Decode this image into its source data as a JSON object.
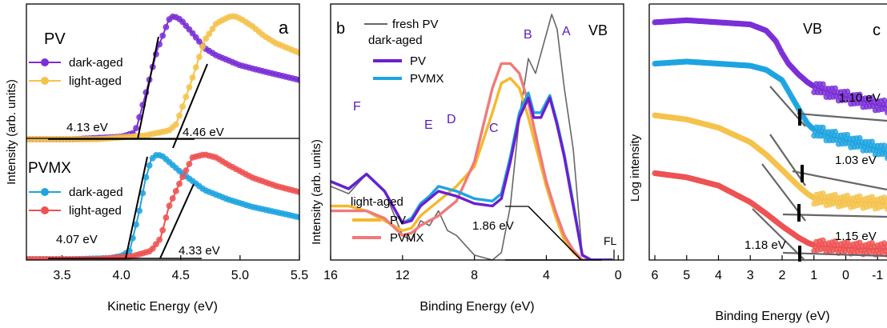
{
  "chart_data": [
    {
      "panel_label": "a",
      "type": "line",
      "xlabel": "Kinetic Energy (eV)",
      "ylabel": "Intensity (arb. units)",
      "xlim": [
        3.2,
        5.5
      ],
      "xticks": [
        "3.5",
        "4.0",
        "4.5",
        "5.0",
        "5.5"
      ],
      "groups": [
        {
          "title": "PV",
          "series": [
            {
              "name": "dark-aged",
              "color": "#7b2fd6",
              "x": [
                3.2,
                3.6,
                4.0,
                4.1,
                4.13,
                4.2,
                4.3,
                4.4,
                4.44,
                4.5,
                4.6,
                4.7,
                4.8,
                5.0,
                5.2,
                5.5
              ],
              "y": [
                0,
                0,
                0.02,
                0.05,
                0.1,
                0.35,
                0.72,
                0.97,
                1.0,
                0.97,
                0.86,
                0.74,
                0.68,
                0.6,
                0.55,
                0.48
              ]
            },
            {
              "name": "light-aged",
              "color": "#f5c24c",
              "x": [
                3.2,
                3.8,
                4.2,
                4.4,
                4.46,
                4.5,
                4.6,
                4.7,
                4.8,
                4.9,
                4.95,
                5.0,
                5.1,
                5.2,
                5.3,
                5.5
              ],
              "y": [
                0,
                0,
                0.03,
                0.07,
                0.12,
                0.22,
                0.5,
                0.8,
                0.94,
                0.99,
                1.0,
                0.98,
                0.92,
                0.84,
                0.78,
                0.7
              ]
            }
          ],
          "annotations": [
            "4.13 eV",
            "4.46 eV"
          ]
        },
        {
          "title": "PVMX",
          "series": [
            {
              "name": "dark-aged",
              "color": "#1ea4e0",
              "x": [
                3.2,
                3.6,
                3.9,
                4.0,
                4.07,
                4.15,
                4.2,
                4.25,
                4.3,
                4.35,
                4.5,
                4.7,
                4.9,
                5.1,
                5.3,
                5.5
              ],
              "y": [
                0,
                0,
                0.01,
                0.03,
                0.08,
                0.45,
                0.75,
                0.95,
                1.0,
                0.98,
                0.83,
                0.66,
                0.57,
                0.5,
                0.45,
                0.4
              ]
            },
            {
              "name": "light-aged",
              "color": "#ee5252",
              "x": [
                3.2,
                3.8,
                4.1,
                4.25,
                4.33,
                4.4,
                4.5,
                4.6,
                4.7,
                4.8,
                4.9,
                5.1,
                5.3,
                5.5
              ],
              "y": [
                0,
                0,
                0.03,
                0.08,
                0.2,
                0.5,
                0.75,
                0.97,
                1.0,
                0.97,
                0.9,
                0.78,
                0.7,
                0.64
              ]
            }
          ],
          "annotations": [
            "4.07 eV",
            "4.33 eV"
          ]
        }
      ]
    },
    {
      "panel_label": "b",
      "type": "line",
      "title": "VB",
      "xlabel": "Binding Energy (eV)",
      "ylabel": "Intensity (arb. units)",
      "xlim": [
        16,
        -0.3
      ],
      "xticks": [
        "16",
        "12",
        "8",
        "4",
        "0"
      ],
      "series": [
        {
          "name": "fresh PV",
          "color": "#666666",
          "x": [
            16,
            15,
            14,
            13,
            12,
            11.5,
            11,
            10.5,
            10,
            9.5,
            9,
            8.5,
            8,
            7,
            6.5,
            6,
            5.5,
            5,
            4.6,
            4.3,
            3.7,
            3.4,
            3,
            2.5,
            2.0,
            1.5,
            1.0,
            0.3
          ],
          "y": [
            0.3,
            0.27,
            0.35,
            0.28,
            0.1,
            0.08,
            0.16,
            0.14,
            0.2,
            0.12,
            0.1,
            0.06,
            0.02,
            0,
            0.03,
            0.22,
            0.58,
            0.82,
            0.76,
            0.84,
            1.0,
            0.94,
            0.7,
            0.45,
            0.02,
            0,
            0,
            0
          ]
        },
        {
          "name": "PV",
          "group": "dark-aged",
          "color": "#6a1fd0",
          "x": [
            16,
            15,
            14,
            13,
            12,
            11.5,
            11,
            10.5,
            10,
            9.5,
            9,
            8,
            7,
            6.5,
            6,
            5.5,
            5,
            4.7,
            4.3,
            3.8,
            3.4,
            3,
            2.5,
            2.0,
            1.5,
            1.0,
            0.3
          ],
          "y": [
            0.32,
            0.29,
            0.35,
            0.28,
            0.15,
            0.16,
            0.22,
            0.25,
            0.28,
            0.27,
            0.26,
            0.23,
            0.22,
            0.25,
            0.4,
            0.58,
            0.66,
            0.58,
            0.58,
            0.66,
            0.55,
            0.42,
            0.22,
            0.02,
            0,
            0,
            0
          ]
        },
        {
          "name": "PVMX",
          "group": "dark-aged",
          "color": "#1ea4e0",
          "x": [
            16,
            15,
            14,
            13,
            12,
            11.5,
            11,
            10.5,
            10,
            9.5,
            9,
            8,
            7,
            6.5,
            6,
            5.5,
            5,
            4.7,
            4.3,
            3.8,
            3.4,
            3,
            2.5,
            2.0,
            1.5,
            1.0,
            0.3
          ],
          "y": [
            0.32,
            0.29,
            0.35,
            0.28,
            0.15,
            0.17,
            0.23,
            0.26,
            0.3,
            0.29,
            0.28,
            0.25,
            0.24,
            0.27,
            0.42,
            0.6,
            0.68,
            0.6,
            0.6,
            0.67,
            0.56,
            0.43,
            0.23,
            0.02,
            0,
            0,
            0
          ]
        },
        {
          "name": "PV",
          "group": "light-aged",
          "color": "#f5b82e",
          "x": [
            16,
            15,
            14,
            13,
            12,
            11.5,
            11,
            10,
            9,
            8,
            7,
            6.5,
            6,
            5.5,
            5,
            4.5,
            4,
            3.5,
            3,
            2.5,
            2.0,
            1.5,
            1.0,
            0.3
          ],
          "y": [
            0.22,
            0.22,
            0.2,
            0.16,
            0.12,
            0.13,
            0.18,
            0.24,
            0.3,
            0.38,
            0.6,
            0.72,
            0.74,
            0.7,
            0.58,
            0.44,
            0.3,
            0.18,
            0.08,
            0.03,
            0,
            0,
            0,
            0
          ]
        },
        {
          "name": "PVMX",
          "group": "light-aged",
          "color": "#f07a7a",
          "x": [
            16,
            15,
            14,
            13,
            12,
            11.5,
            11,
            10,
            9,
            8,
            7,
            6.5,
            6,
            5.5,
            5,
            4.5,
            4,
            3.5,
            3,
            2.5,
            2.0,
            1.5,
            1.0,
            0.3
          ],
          "y": [
            0.2,
            0.2,
            0.2,
            0.17,
            0.1,
            0.11,
            0.14,
            0.18,
            0.24,
            0.4,
            0.7,
            0.8,
            0.8,
            0.76,
            0.64,
            0.48,
            0.32,
            0.2,
            0.1,
            0.04,
            0,
            0,
            0,
            0
          ]
        }
      ],
      "peak_labels": [
        "A",
        "B",
        "C",
        "D",
        "E",
        "F"
      ],
      "legend_groups": [
        "dark-aged",
        "light-aged"
      ],
      "annotations": [
        "1.86 eV",
        "FL"
      ]
    },
    {
      "panel_label": "c",
      "type": "line",
      "title": "VB",
      "xlabel": "Binding Energy (eV)",
      "ylabel": "Log intensity",
      "xlim": [
        6,
        -1.8
      ],
      "xticks": [
        "6",
        "5",
        "4",
        "3",
        "2",
        "1",
        "0",
        "-1"
      ],
      "series": [
        {
          "color": "#7b2fd6",
          "x": [
            6,
            5,
            4,
            3,
            2.5,
            2.2,
            2.0,
            1.8,
            1.5,
            1.2,
            1.0,
            0.5,
            0,
            -0.5,
            -1,
            -1.5,
            -1.8
          ],
          "y": [
            9.35,
            9.4,
            9.35,
            9.3,
            9.15,
            8.9,
            8.6,
            8.35,
            8.1,
            7.9,
            7.8,
            7.65,
            7.55,
            7.45,
            7.35,
            7.28,
            7.22
          ]
        },
        {
          "color": "#1ea4e0",
          "x": [
            6,
            5,
            4,
            3,
            2.5,
            2.0,
            1.7,
            1.4,
            1.2,
            1.0,
            0.5,
            0,
            -0.5,
            -1,
            -1.5,
            -1.8
          ],
          "y": [
            8.35,
            8.4,
            8.35,
            8.3,
            8.2,
            7.95,
            7.55,
            7.15,
            6.9,
            6.75,
            6.6,
            6.5,
            6.4,
            6.28,
            6.16,
            6.08
          ]
        },
        {
          "color": "#f5c24c",
          "x": [
            6,
            5,
            4,
            3,
            2.5,
            2.0,
            1.5,
            1.2,
            1.0,
            0.5,
            0,
            -0.5,
            -1,
            -1.5,
            -1.8
          ],
          "y": [
            7.1,
            7.0,
            6.8,
            6.45,
            6.15,
            5.78,
            5.4,
            5.2,
            5.1,
            5.05,
            5.02,
            5.0,
            4.98,
            4.96,
            4.95
          ]
        },
        {
          "color": "#ee5252",
          "x": [
            6,
            5,
            4,
            3,
            2.5,
            2.0,
            1.5,
            1.2,
            1.0,
            0.5,
            0,
            -0.5,
            -1,
            -1.5,
            -1.8
          ],
          "y": [
            5.7,
            5.6,
            5.4,
            5.0,
            4.72,
            4.42,
            4.15,
            4.02,
            3.96,
            3.92,
            3.9,
            3.88,
            3.87,
            3.86,
            3.86
          ]
        }
      ],
      "annotations": [
        "1.10 eV",
        "1.03 eV",
        "1.15 eV",
        "1.18 eV"
      ]
    }
  ]
}
